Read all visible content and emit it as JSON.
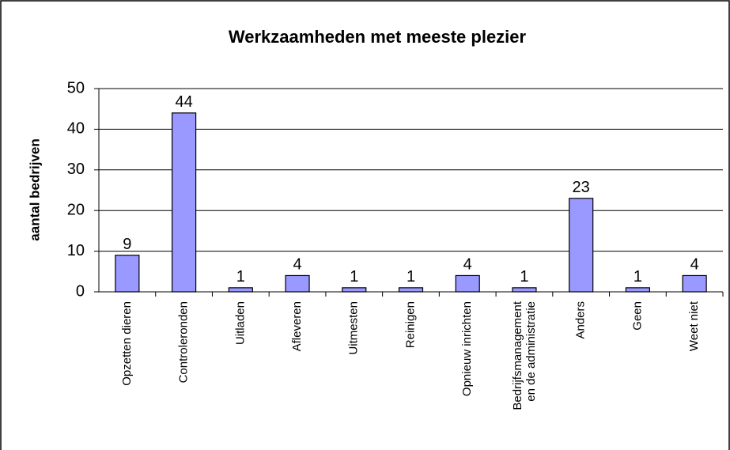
{
  "chart_data": {
    "type": "bar",
    "title": "Werkzaamheden met meeste plezier",
    "y_label": "aantal bedrijven",
    "categories": [
      "Opzetten dieren",
      "Controleronden",
      "Uitladen",
      "Afleveren",
      "Uitmesten",
      "Reinigen",
      "Opnieuw inrichten",
      "Bedrijfsmanagement en de administratie",
      "Anders",
      "Geen",
      "Weet niet"
    ],
    "values": [
      9,
      44,
      1,
      4,
      1,
      1,
      4,
      1,
      23,
      1,
      4
    ],
    "color": "#9999ff",
    "ylim": [
      0,
      50
    ],
    "yticks": [
      0,
      10,
      20,
      30,
      40,
      50
    ],
    "grid": true
  }
}
